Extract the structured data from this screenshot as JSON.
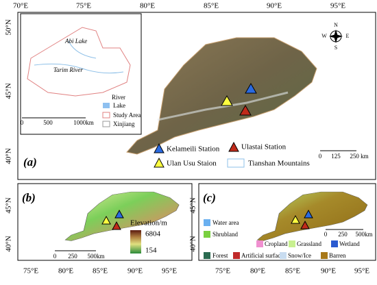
{
  "panel_a": {
    "label": "(a)",
    "lon_labels": [
      "70°E",
      "75°E",
      "80°E",
      "85°E",
      "90°E",
      "95°E"
    ],
    "lat_labels": [
      "50°N",
      "45°N",
      "40°N"
    ],
    "inset": {
      "lake_name": "Abi Lake",
      "river_name": "Tarim River",
      "scale": [
        "0",
        "500",
        "1000km"
      ],
      "legend": [
        "River",
        "Lake",
        "Study Area",
        "Xinjiang"
      ]
    },
    "compass": [
      "N",
      "E",
      "S",
      "W"
    ],
    "legend": [
      "Kelameili Station",
      "Ulastai Station",
      "Ulan Usu Staion",
      "Tianshan Mountains"
    ],
    "scale": [
      "0",
      "125",
      "250 km"
    ]
  },
  "panel_b": {
    "label": "(b)",
    "lon_labels": [
      "75°E",
      "80°E",
      "85°E",
      "90°E",
      "95°E"
    ],
    "lat_labels": [
      "45°N",
      "40°N"
    ],
    "legend_title": "Elevation/m",
    "elevation_max": 6804,
    "elevation_min": 154,
    "scale": [
      "0",
      "250",
      "500km"
    ]
  },
  "panel_c": {
    "label": "(c)",
    "lon_labels": [
      "75°E",
      "80°E",
      "85°E",
      "90°E",
      "95°E"
    ],
    "lat_labels": [
      "45°N",
      "40°N"
    ],
    "legend": [
      "Water area",
      "Shrubland",
      "Cropland",
      "Grassland",
      "Wetland",
      "Forest",
      "Artificial surface",
      "Snow/Ice",
      "Barren"
    ],
    "scale": [
      "0",
      "250",
      "500km"
    ]
  }
}
